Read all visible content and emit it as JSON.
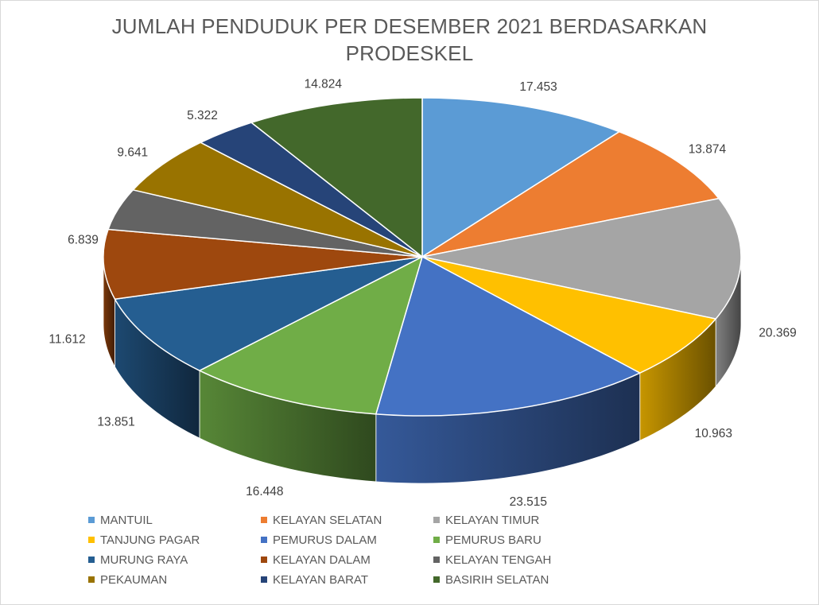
{
  "chart_data": {
    "type": "pie",
    "title_lines": [
      "JUMLAH PENDUDUK PER DESEMBER 2021 BERDASARKAN",
      "PRODESKEL"
    ],
    "categories": [
      "MANTUIL",
      "KELAYAN SELATAN",
      "KELAYAN TIMUR",
      "TANJUNG PAGAR",
      "PEMURUS DALAM",
      "PEMURUS BARU",
      "MURUNG RAYA",
      "KELAYAN DALAM",
      "KELAYAN TENGAH",
      "PEKAUMAN",
      "KELAYAN BARAT",
      "BASIRIH SELATAN"
    ],
    "values": [
      17453,
      13874,
      20369,
      10963,
      23515,
      16448,
      13851,
      11612,
      6839,
      9641,
      5322,
      14824
    ],
    "value_labels": [
      "17.453",
      "13.874",
      "20.369",
      "10.963",
      "23.515",
      "16.448",
      "13.851",
      "11.612",
      "6.839",
      "9.641",
      "5.322",
      "14.824"
    ],
    "colors": [
      "#5b9bd5",
      "#ed7d31",
      "#a5a5a5",
      "#ffc000",
      "#4472c4",
      "#70ad47",
      "#255e91",
      "#9e480e",
      "#636363",
      "#997300",
      "#264478",
      "#43682b"
    ],
    "style": "3d-pie",
    "legend_position": "bottom"
  }
}
